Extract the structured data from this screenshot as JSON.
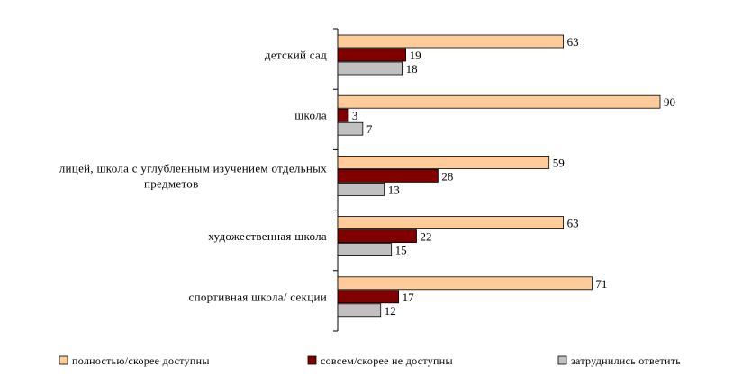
{
  "chart_data": {
    "type": "bar",
    "orientation": "horizontal",
    "categories": [
      [
        "детский сад"
      ],
      [
        "школа"
      ],
      [
        "лицей, школа с углубленным изучением отдельных",
        "предметов"
      ],
      [
        "художественная школа"
      ],
      [
        "спортивная школа/ секции"
      ]
    ],
    "series": [
      {
        "name": "полностью/скорее доступны",
        "color": "#FFCC99",
        "values": [
          63,
          90,
          59,
          63,
          71
        ]
      },
      {
        "name": "совсем/скорее не доступны",
        "color": "#800000",
        "values": [
          19,
          3,
          28,
          22,
          17
        ]
      },
      {
        "name": "затруднились ответить",
        "color": "#C0C0C0",
        "values": [
          18,
          7,
          13,
          15,
          12
        ]
      }
    ],
    "xlim": [
      0,
      90
    ],
    "grid": false,
    "legend": "bottom",
    "title": "",
    "xlabel": "",
    "ylabel": ""
  }
}
